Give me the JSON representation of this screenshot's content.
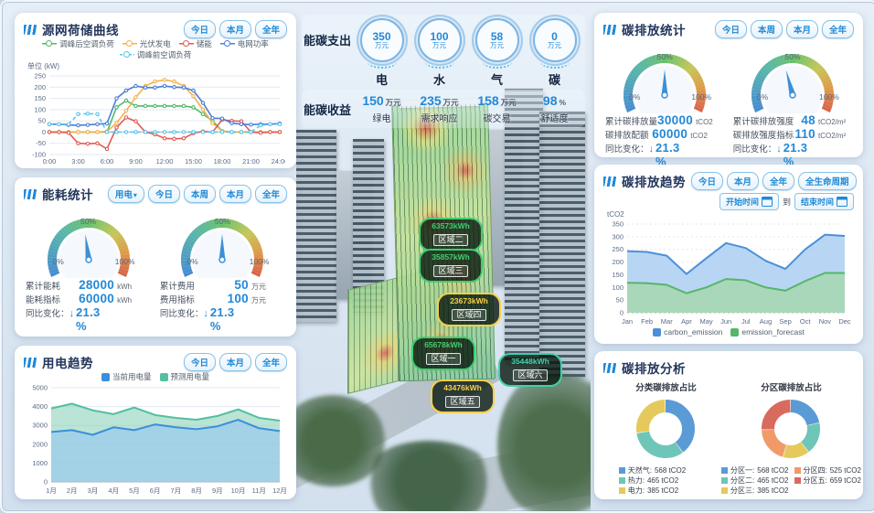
{
  "theme": {
    "accent": "#2288d8",
    "panel_bg": "#ffffff",
    "page_bg": "#dbe7f2",
    "title_color": "#22355c",
    "button_border": "#86c2e8"
  },
  "panels": {
    "source_grid": {
      "title": "源网荷储曲线",
      "filters": {
        "today": "今日",
        "month": "本月",
        "year": "全年"
      },
      "unit": "单位 (kW)"
    },
    "energy_stats": {
      "title": "能耗统计",
      "type_select": {
        "label": "用电",
        "caret": "▾"
      },
      "filters": {
        "today": "今日",
        "week": "本周",
        "month": "本月",
        "year": "全年"
      },
      "gauges": [
        {
          "fraction": 0.467,
          "top_label": "50%",
          "min_label": "0%",
          "max_label": "100%",
          "rows": [
            {
              "label": "累计能耗",
              "value": "28000",
              "unit": "kWh"
            },
            {
              "label": "能耗指标",
              "value": "60000",
              "unit": "kWh"
            }
          ],
          "yoy": {
            "label": "同比变化：",
            "arrow": "↓",
            "value": "21.3 %"
          }
        },
        {
          "fraction": 0.5,
          "top_label": "50%",
          "min_label": "0%",
          "max_label": "100%",
          "rows": [
            {
              "label": "累计费用",
              "value": "50",
              "unit": "万元"
            },
            {
              "label": "费用指标",
              "value": "100",
              "unit": "万元"
            }
          ],
          "yoy": {
            "label": "同比变化：",
            "arrow": "↓",
            "value": "21.3 %"
          }
        }
      ]
    },
    "power_trend": {
      "title": "用电趋势",
      "filters": {
        "today": "今日",
        "month": "本月",
        "year": "全年"
      }
    },
    "carbon_stats": {
      "title": "碳排放统计",
      "filters": {
        "today": "今日",
        "week": "本周",
        "month": "本月",
        "year": "全年"
      },
      "gauges": [
        {
          "fraction": 0.5,
          "top_label": "50%",
          "min_label": "0%",
          "max_label": "100%",
          "rows": [
            {
              "label": "累计碳排放量",
              "value": "30000",
              "unit": "tCO2"
            },
            {
              "label": "碳排放配额",
              "value": "60000",
              "unit": "tCO2"
            }
          ],
          "yoy": {
            "label": "同比变化：",
            "arrow": "↓",
            "value": "21.3 %"
          }
        },
        {
          "fraction": 0.436,
          "top_label": "50%",
          "min_label": "0%",
          "max_label": "100%",
          "rows": [
            {
              "label": "累计碳排放强度",
              "value": "48",
              "unit": "tCO2/m²"
            },
            {
              "label": "碳排放强度指标",
              "value": "110",
              "unit": "tCO2/m²"
            }
          ],
          "yoy": {
            "label": "同比变化：",
            "arrow": "↓",
            "value": "21.3 %"
          }
        }
      ]
    },
    "carbon_trend": {
      "title": "碳排放趋势",
      "filters": {
        "today": "今日",
        "month": "本月",
        "year": "全年",
        "lifecycle": "全生命周期"
      },
      "range": {
        "start": "开始时间",
        "to": "到",
        "end": "结束时间"
      },
      "unit": "tCO2"
    },
    "carbon_analysis": {
      "title": "碳排放分析",
      "left_title": "分类碳排放占比",
      "right_title": "分区碳排放占比"
    }
  },
  "center": {
    "expense": {
      "label": "能碳支出",
      "items": [
        {
          "value": "350",
          "unit": "万元",
          "name": "电"
        },
        {
          "value": "100",
          "unit": "万元",
          "name": "水"
        },
        {
          "value": "58",
          "unit": "万元",
          "name": "气"
        },
        {
          "value": "0",
          "unit": "万元",
          "name": "碳"
        }
      ]
    },
    "income": {
      "label": "能碳收益",
      "items": [
        {
          "value": "150",
          "unit": "万元",
          "name": "绿电"
        },
        {
          "value": "235",
          "unit": "万元",
          "name": "需求响应"
        },
        {
          "value": "158",
          "unit": "万元",
          "name": "碳交易"
        },
        {
          "value": "98",
          "unit": "%",
          "name": "舒适度"
        }
      ]
    },
    "zones": [
      {
        "name": "区域二",
        "value": "63573kWh",
        "color": "#3ecf6e"
      },
      {
        "name": "区域三",
        "value": "35857kWh",
        "color": "#3ecf6e"
      },
      {
        "name": "区域四",
        "value": "23673kWh",
        "color": "#f7cf4a"
      },
      {
        "name": "区域一",
        "value": "65678kWh",
        "color": "#3ecf6e"
      },
      {
        "name": "区域六",
        "value": "35448kWh",
        "color": "#3fd0a8"
      },
      {
        "name": "区域五",
        "value": "43476kWh",
        "color": "#f7cf4a"
      }
    ]
  },
  "chart_data": [
    {
      "id": "source_grid_curve",
      "type": "line",
      "title": "源网荷储曲线",
      "ylabel": "单位 (kW)",
      "ylim": [
        -100,
        250
      ],
      "ystep": 50,
      "grid": true,
      "xticks": [
        "0:00",
        "3:00",
        "6:00",
        "9:00",
        "12:00",
        "15:00",
        "18:00",
        "21:00",
        "24:00"
      ],
      "series": [
        {
          "name": "调峰后空调负荷",
          "color": "#52b96a",
          "dash": false,
          "values": [
            0,
            0,
            0,
            0,
            0,
            0,
            0,
            110,
            140,
            116,
            116,
            116,
            116,
            116,
            116,
            110,
            80,
            50,
            5,
            0,
            0,
            0,
            0,
            0,
            0
          ]
        },
        {
          "name": "光伏发电",
          "color": "#f5b04c",
          "dash": false,
          "values": [
            0,
            0,
            0,
            0,
            0,
            0,
            3,
            40,
            95,
            155,
            205,
            225,
            232,
            225,
            205,
            160,
            100,
            40,
            5,
            0,
            0,
            0,
            0,
            0,
            0
          ]
        },
        {
          "name": "储能",
          "color": "#e05c55",
          "dash": false,
          "values": [
            0,
            0,
            -3,
            -50,
            -52,
            -50,
            -75,
            20,
            65,
            48,
            0,
            -10,
            -28,
            -30,
            -28,
            -5,
            3,
            0,
            55,
            50,
            48,
            0,
            -3,
            0,
            0
          ]
        },
        {
          "name": "电网功率",
          "color": "#4a7fd4",
          "dash": false,
          "values": [
            35,
            35,
            32,
            30,
            32,
            35,
            38,
            150,
            185,
            205,
            198,
            198,
            205,
            200,
            198,
            185,
            130,
            62,
            60,
            40,
            35,
            33,
            35,
            35,
            38
          ]
        },
        {
          "name": "调峰前空调负荷",
          "color": "#58c5e8",
          "dash": true,
          "values": [
            35,
            35,
            35,
            80,
            82,
            80,
            0,
            0,
            0,
            0,
            0,
            0,
            0,
            0,
            0,
            0,
            0,
            0,
            0,
            0,
            0,
            0,
            30,
            35,
            35
          ]
        }
      ]
    },
    {
      "id": "power_trend",
      "type": "area",
      "title": "用电趋势",
      "categories": [
        "1月",
        "2月",
        "3月",
        "4月",
        "5月",
        "6月",
        "7月",
        "8月",
        "9月",
        "10月",
        "11月",
        "12月"
      ],
      "ylim": [
        0,
        5000
      ],
      "ystep": 1000,
      "grid": true,
      "series": [
        {
          "name": "预测用电量",
          "color": "#52bfa0",
          "fill": "rgba(130,205,180,0.55)",
          "values": [
            3900,
            4150,
            3800,
            3600,
            3950,
            3550,
            3400,
            3300,
            3500,
            3850,
            3400,
            3250
          ]
        },
        {
          "name": "当前用电量",
          "color": "#3a8fd9",
          "fill": "rgba(150,200,240,0.65)",
          "values": [
            2650,
            2750,
            2500,
            2900,
            2750,
            3050,
            2900,
            2800,
            2950,
            3300,
            2850,
            2700
          ]
        }
      ]
    },
    {
      "id": "carbon_trend",
      "type": "area",
      "title": "碳排放趋势",
      "ylabel": "tCO2",
      "categories": [
        "Jan",
        "Feb",
        "Mar",
        "Apr",
        "May",
        "Jun",
        "Jul",
        "Aug",
        "Sep",
        "Oct",
        "Nov",
        "Dec"
      ],
      "ylim": [
        0,
        350
      ],
      "ystep": 50,
      "grid": true,
      "series": [
        {
          "name": "carbon_emission",
          "color": "#4a90d9",
          "fill": "rgba(160,200,240,0.75)",
          "values": [
            243,
            240,
            225,
            153,
            215,
            275,
            255,
            205,
            173,
            250,
            308,
            303
          ]
        },
        {
          "name": "emission_forecast",
          "color": "#55b56a",
          "fill": "rgba(165,215,170,0.8)",
          "values": [
            118,
            117,
            110,
            77,
            100,
            133,
            128,
            100,
            87,
            125,
            157,
            157
          ]
        }
      ]
    },
    {
      "id": "category_donut",
      "type": "pie",
      "title": "分类碳排放占比",
      "slices": [
        {
          "name": "天然气:",
          "value": 568,
          "label": "568 tCO2",
          "color": "#5b9bd5"
        },
        {
          "name": "热力:",
          "value": 465,
          "label": "465 tCO2",
          "color": "#6ec6b8"
        },
        {
          "name": "电力:",
          "value": 385,
          "label": "385 tCO2",
          "color": "#e6c95c"
        }
      ]
    },
    {
      "id": "zone_donut",
      "type": "pie",
      "title": "分区碳排放占比",
      "slices": [
        {
          "name": "分区一:",
          "value": 568,
          "label": "568 tCO2",
          "color": "#5b9bd5"
        },
        {
          "name": "分区二:",
          "value": 465,
          "label": "465 tCO2",
          "color": "#6ec6b8"
        },
        {
          "name": "分区三:",
          "value": 385,
          "label": "385 tCO2",
          "color": "#e6c95c"
        },
        {
          "name": "分区四:",
          "value": 525,
          "label": "525 tCO2",
          "color": "#f09a6a"
        },
        {
          "name": "分区五:",
          "value": 659,
          "label": "659 tCO2",
          "color": "#d96a5e"
        }
      ]
    }
  ]
}
